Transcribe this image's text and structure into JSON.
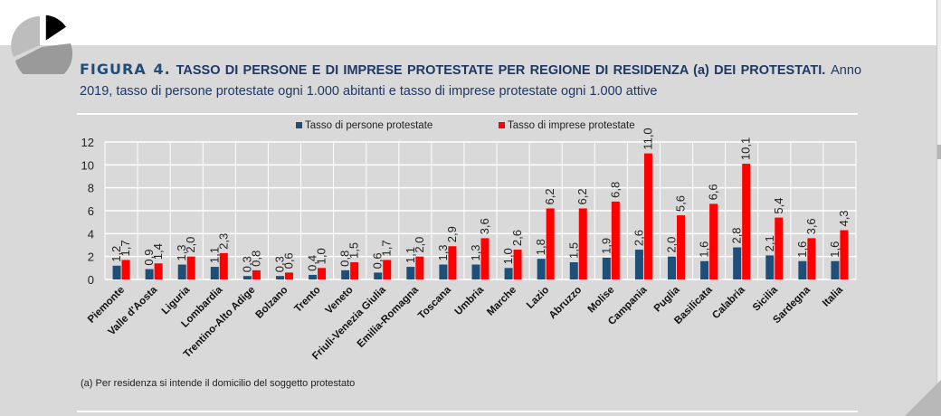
{
  "figure": {
    "label": "FIGURA 4.",
    "title_main": "TASSO DI PERSONE E DI IMPRESE PROTESTATE PER REGIONE DI RESIDENZA (a) DEI PROTESTATI.",
    "title_sub": "Anno 2019, tasso di persone protestate ogni 1.000 abitanti e tasso di imprese protestate ogni 1.000 attive",
    "note": "(a) Per residenza si intende il domicilio del soggetto protestato",
    "icon": "pie-chart-icon"
  },
  "colors": {
    "persone": "#1f4e79",
    "imprese": "#ff0000",
    "title": "#1f4e79",
    "panel": "#d9d9d9"
  },
  "chart_data": {
    "type": "bar",
    "title": "Tasso di persone e di imprese protestate per regione di residenza, Anno 2019",
    "xlabel": "",
    "ylabel": "",
    "ylim": [
      0,
      12
    ],
    "yticks": [
      0,
      2,
      4,
      6,
      8,
      10,
      12
    ],
    "grid": true,
    "legend_position": "top",
    "categories": [
      "Piemonte",
      "Valle d'Aosta",
      "Liguria",
      "Lombardia",
      "Trentino-Alto Adige",
      "Bolzano",
      "Trento",
      "Veneto",
      "Friuli-Venezia Giulia",
      "Emilia-Romagna",
      "Toscana",
      "Umbria",
      "Marche",
      "Lazio",
      "Abruzzo",
      "Molise",
      "Campania",
      "Puglia",
      "Basilicata",
      "Calabria",
      "Sicilia",
      "Sardegna",
      "Italia"
    ],
    "series": [
      {
        "name": "Tasso di persone protestate",
        "color": "#1f4e79",
        "values": [
          1.2,
          0.9,
          1.3,
          1.1,
          0.3,
          0.3,
          0.4,
          0.8,
          0.6,
          1.1,
          1.3,
          1.3,
          1.0,
          1.8,
          1.5,
          1.9,
          2.6,
          2.0,
          1.6,
          2.8,
          2.1,
          1.6,
          1.6
        ],
        "labels": [
          "1,2",
          "0,9",
          "1,3",
          "1,1",
          "0,3",
          "0,3",
          "0,4",
          "0,8",
          "0,6",
          "1,1",
          "1,3",
          "1,3",
          "1,0",
          "1,8",
          "1,5",
          "1,9",
          "2,6",
          "2,0",
          "1,6",
          "2,8",
          "2,1",
          "1,6",
          "1,6"
        ]
      },
      {
        "name": "Tasso di imprese protestate",
        "color": "#ff0000",
        "values": [
          1.7,
          1.4,
          2.0,
          2.3,
          0.8,
          0.6,
          1.0,
          1.5,
          1.7,
          2.0,
          2.9,
          3.6,
          2.6,
          6.2,
          6.2,
          6.8,
          11.0,
          5.6,
          6.6,
          10.1,
          5.4,
          3.6,
          4.3
        ],
        "labels": [
          "1,7",
          "1,4",
          "2,0",
          "2,3",
          "0,8",
          "0,6",
          "1,0",
          "1,5",
          "1,7",
          "2,0",
          "2,9",
          "3,6",
          "2,6",
          "6,2",
          "6,2",
          "6,8",
          "11,0",
          "5,6",
          "6,6",
          "10,1",
          "5,4",
          "3,6",
          "4,3"
        ]
      }
    ]
  }
}
